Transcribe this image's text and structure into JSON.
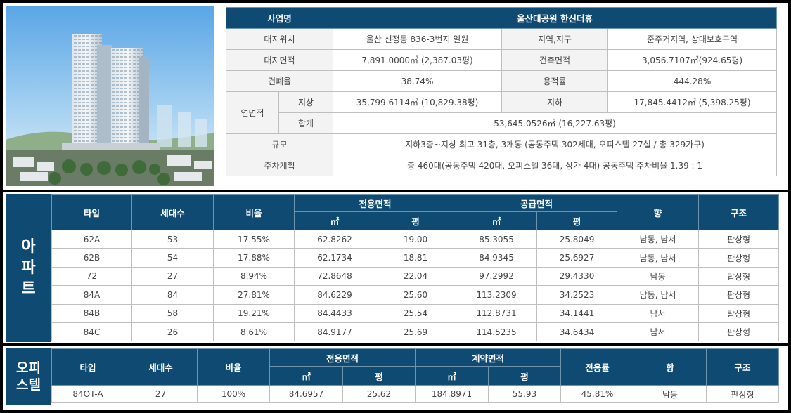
{
  "summary": {
    "project_label": "사업명",
    "project_name": "울산대공원 한신더휴",
    "site_location_label": "대지위치",
    "site_location": "울산 신정동 836-3번지 일원",
    "zone_label": "지역,지구",
    "zone": "준주거지역, 상대보호구역",
    "site_area_label": "대지면적",
    "site_area": "7,891.0000㎡ (2,387.03평)",
    "building_area_label": "건축면적",
    "building_area": "3,056.7107㎡(924.65평)",
    "coverage_label": "건폐율",
    "coverage": "38.74%",
    "far_label": "용적률",
    "far": "444.28%",
    "gfa_label": "연면적",
    "above_label": "지상",
    "above": "35,799.6114㎡ (10,829.38평)",
    "below_label": "지하",
    "below": "17,845.4412㎡ (5,398.25평)",
    "total_label": "합계",
    "total": "53,645.0526㎡ (16,227.63평)",
    "scale_label": "규모",
    "scale": "지하3층~지상 최고 31층, 3개동 (공동주택 302세대, 오피스텔 27실 / 총 329가구)",
    "parking_label": "주차계획",
    "parking": "총 460대(공동주택 420대, 오피스텔 36대, 상가 4대) 공동주택 주차비율 1.39 : 1"
  },
  "apartment": {
    "side_label": [
      "아",
      "파",
      "트"
    ],
    "headers": {
      "type": "타입",
      "households": "세대수",
      "ratio": "비율",
      "exclusive": "전용면적",
      "supply": "공급면적",
      "direction": "향",
      "structure": "구조",
      "sqm": "㎡",
      "pyeong": "평"
    },
    "rows": [
      [
        "62A",
        "53",
        "17.55%",
        "62.8262",
        "19.00",
        "85.3055",
        "25.8049",
        "남동, 남서",
        "판상형"
      ],
      [
        "62B",
        "54",
        "17.88%",
        "62.1734",
        "18.81",
        "84.9345",
        "25.6927",
        "남동, 남서",
        "판상형"
      ],
      [
        "72",
        "27",
        "8.94%",
        "72.8648",
        "22.04",
        "97.2992",
        "29.4330",
        "남동",
        "탑상형"
      ],
      [
        "84A",
        "84",
        "27.81%",
        "84.6229",
        "25.60",
        "113.2309",
        "34.2523",
        "남동, 남서",
        "판상형"
      ],
      [
        "84B",
        "58",
        "19.21%",
        "84.4433",
        "25.54",
        "112.8731",
        "34.1441",
        "남서",
        "탑상형"
      ],
      [
        "84C",
        "26",
        "8.61%",
        "84.9177",
        "25.69",
        "114.5235",
        "34.6434",
        "남서",
        "판상형"
      ]
    ]
  },
  "officetel": {
    "side_label": [
      "오피",
      "스텔"
    ],
    "headers": {
      "type": "타입",
      "households": "세대수",
      "ratio": "비율",
      "exclusive": "전용면적",
      "contract": "계약면적",
      "exclusive_rate": "전용률",
      "direction": "향",
      "structure": "구조",
      "sqm": "㎡",
      "pyeong": "평"
    },
    "rows": [
      [
        "84OT-A",
        "27",
        "100%",
        "84.6957",
        "25.62",
        "184.8971",
        "55.93",
        "45.81%",
        "남동",
        "판상형"
      ]
    ]
  }
}
